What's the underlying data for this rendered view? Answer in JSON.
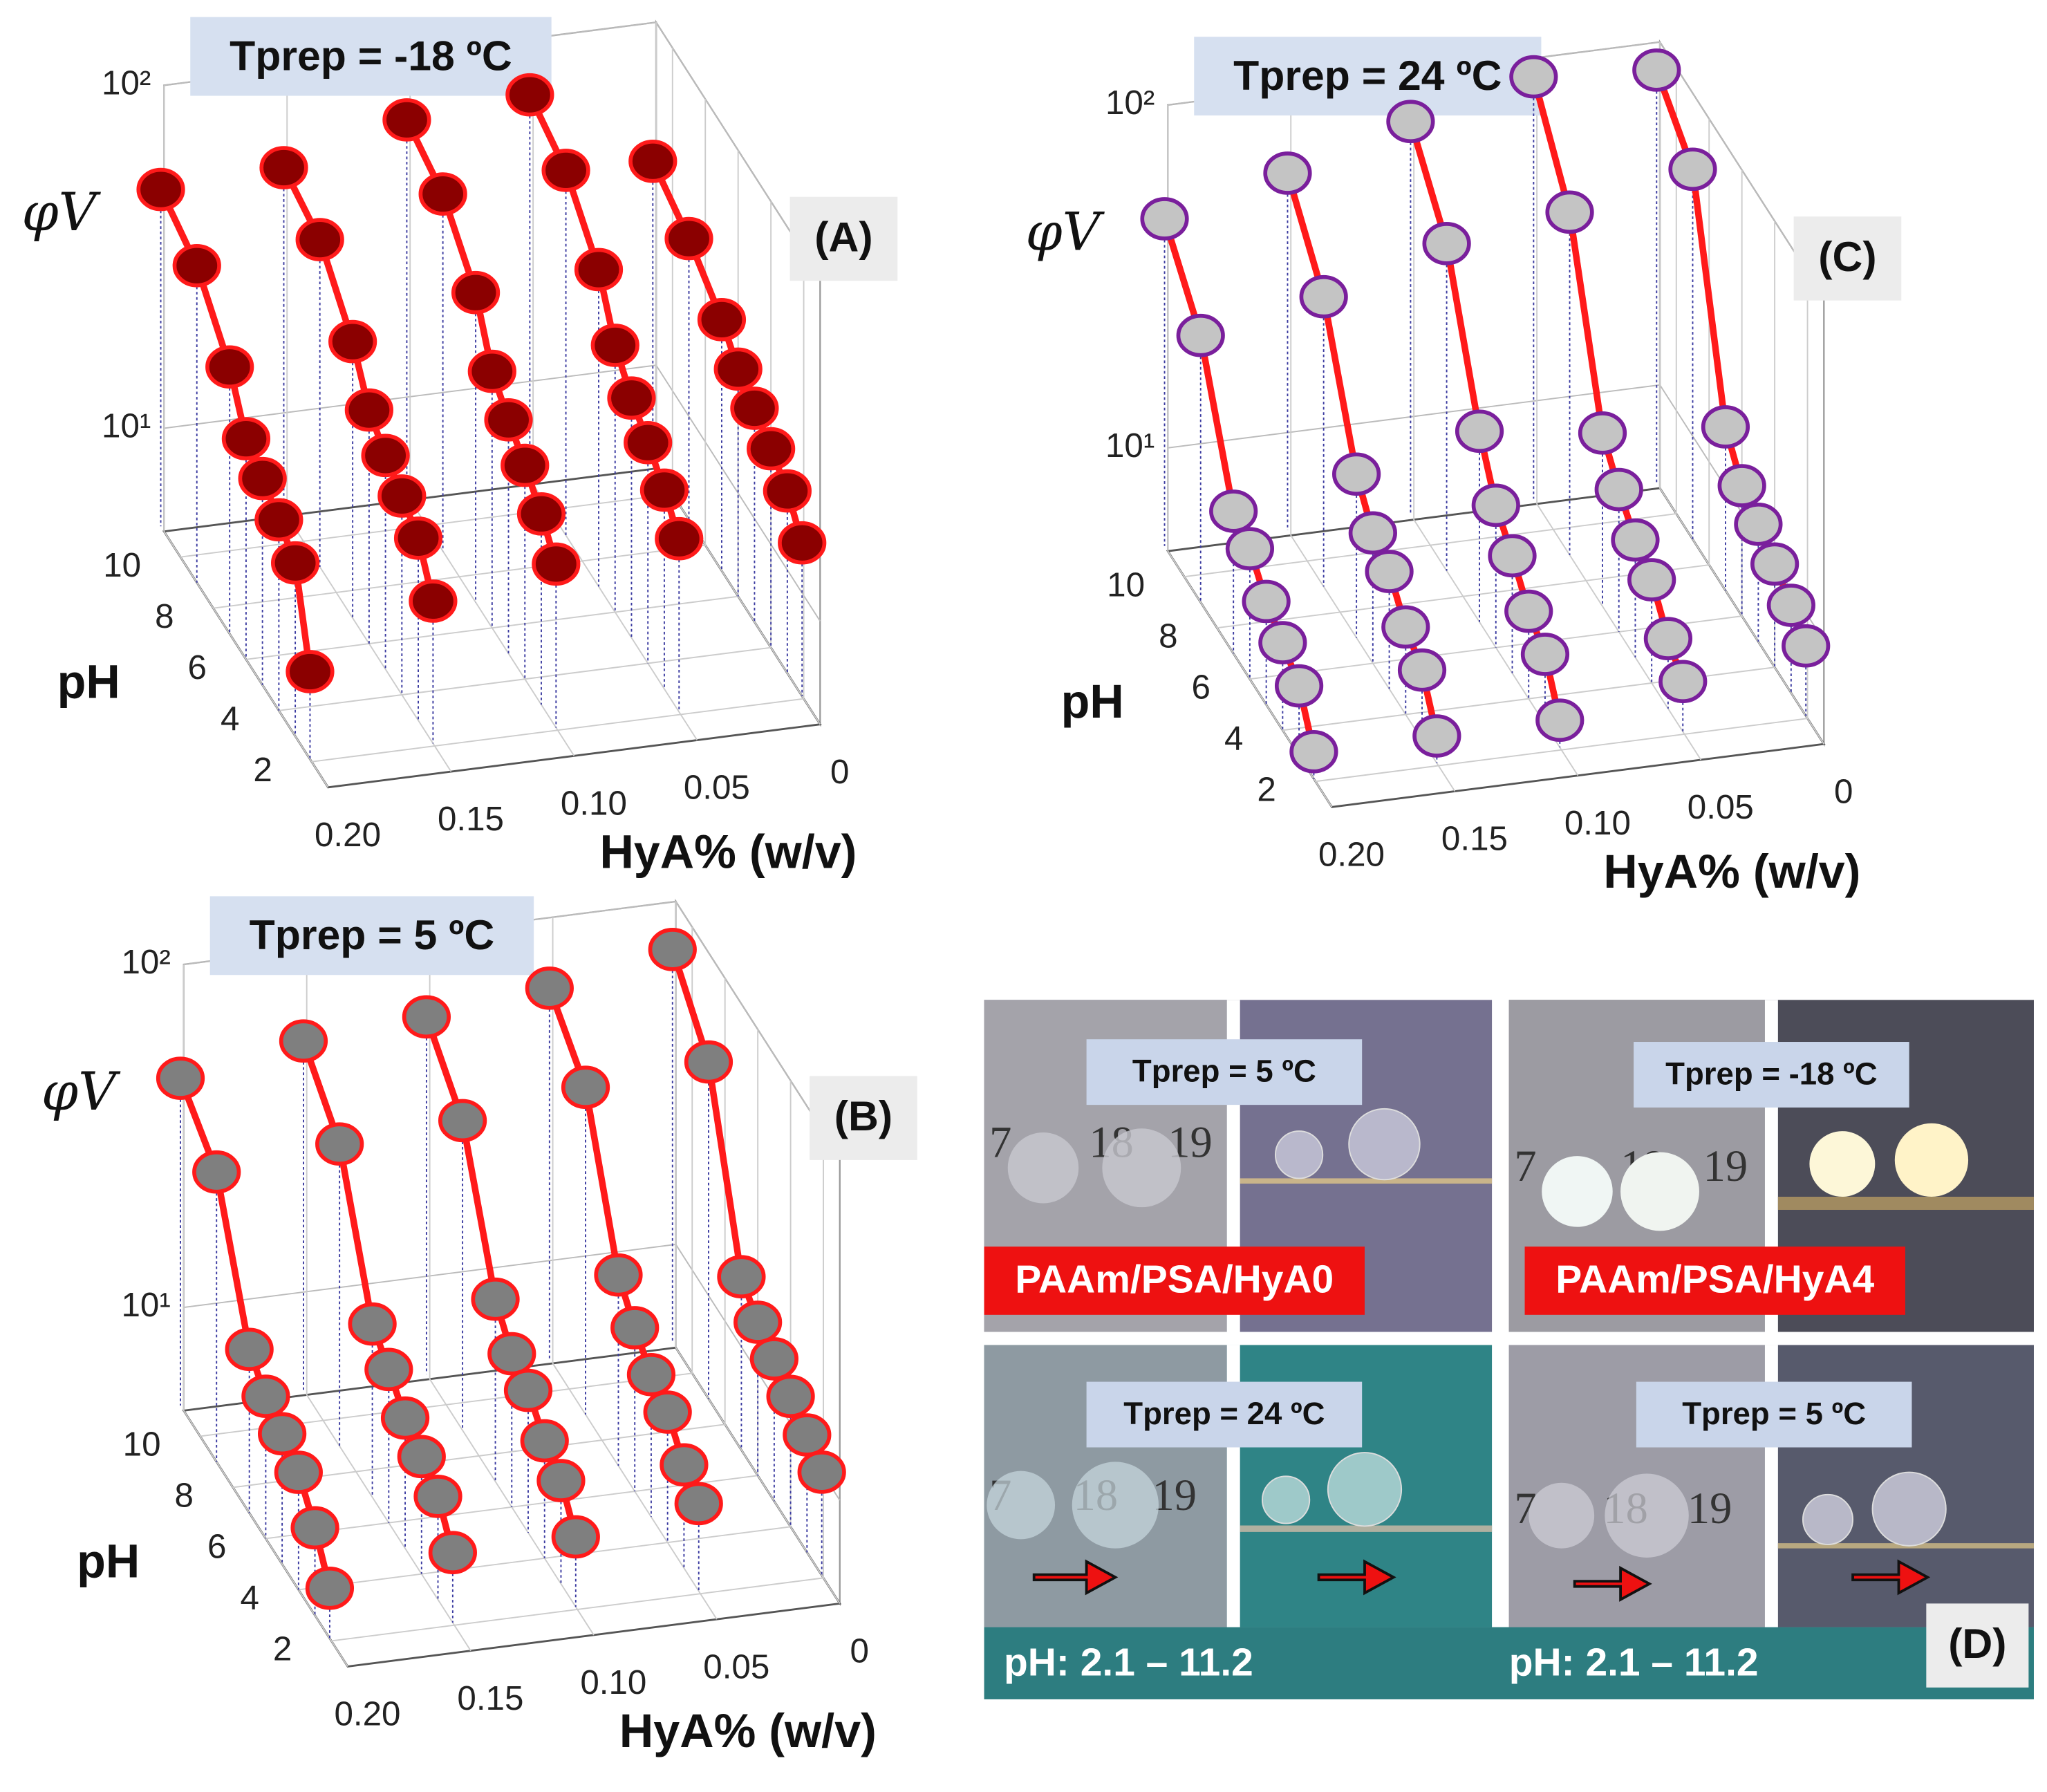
{
  "chart_data": [
    {
      "type": "scatter3d",
      "title": "Tprep = -18 ºC",
      "panel_label": "(A)",
      "xlabel": "HyA% (w/v)",
      "ylabel": "pH",
      "zlabel": "φV",
      "xlim": [
        0.2,
        0
      ],
      "xticks": [
        {
          "value": 0.2,
          "label": "0.20"
        },
        0.15,
        {
          "value": 0.1,
          "label": "0.10"
        },
        0.05,
        0
      ],
      "ylim": [
        1,
        11
      ],
      "yticks": [
        2,
        4,
        6,
        8,
        10
      ],
      "zscale": "log",
      "zlim": [
        5,
        100
      ],
      "zticks": [
        {
          "value": 10,
          "label": "10¹"
        },
        {
          "value": 100,
          "label": "10²"
        }
      ],
      "marker_fill": "#8b0000",
      "marker_edge": "#ff1a1a",
      "line_color": "#ff1a1a",
      "x": [
        2.1,
        3,
        4,
        5,
        6,
        7,
        9,
        11.2
      ],
      "series": [
        {
          "hya": 0.2,
          "values": [
            9,
            16,
            18,
            20,
            22,
            30,
            42,
            48
          ]
        },
        {
          "hya": 0.15,
          "values": [
            13,
            17,
            19,
            21,
            24,
            32,
            45,
            50
          ]
        },
        {
          "hya": 0.1,
          "values": [
            15,
            18,
            21,
            24,
            28,
            40,
            55,
            62
          ]
        },
        {
          "hya": 0.05,
          "values": [
            16,
            19,
            22,
            25,
            30,
            42,
            58,
            66
          ]
        },
        {
          "hya": 0,
          "values": [
            14,
            17,
            19,
            21,
            23,
            27,
            33,
            38
          ]
        }
      ]
    },
    {
      "type": "scatter3d",
      "title": "Tprep = 24 ºC",
      "panel_label": "(C)",
      "xlabel": "HyA% (w/v)",
      "ylabel": "pH",
      "zlabel": "φV",
      "xlim": [
        0.2,
        0
      ],
      "xticks": [
        {
          "value": 0.2,
          "label": "0.20"
        },
        0.15,
        {
          "value": 0.1,
          "label": "0.10"
        },
        0.05,
        0
      ],
      "ylim": [
        1,
        11
      ],
      "yticks": [
        2,
        4,
        6,
        8,
        10
      ],
      "zscale": "log",
      "zlim": [
        5,
        100
      ],
      "zticks": [
        {
          "value": 10,
          "label": "10¹"
        },
        {
          "value": 100,
          "label": "10²"
        }
      ],
      "marker_fill": "#c4c4c4",
      "marker_edge": "#7a1f9c",
      "line_color": "#ff1a1a",
      "x": [
        2.1,
        3,
        4,
        5,
        6,
        7,
        9,
        11.2
      ],
      "series": [
        {
          "hya": 0.2,
          "values": [
            6,
            8,
            9,
            10,
            12,
            13,
            30,
            45
          ]
        },
        {
          "hya": 0.15,
          "values": [
            6,
            8,
            9,
            11,
            12,
            15,
            35,
            55
          ]
        },
        {
          "hya": 0.1,
          "values": [
            6,
            8,
            9,
            11,
            13,
            18,
            45,
            70
          ]
        },
        {
          "hya": 0.05,
          "values": [
            7,
            8,
            10,
            11,
            13,
            16,
            50,
            85
          ]
        },
        {
          "hya": 0,
          "values": [
            8,
            9,
            10,
            11,
            12,
            15,
            60,
            80
          ]
        }
      ]
    },
    {
      "type": "scatter3d",
      "title": "Tprep = 5 ºC",
      "panel_label": "(B)",
      "xlabel": "HyA% (w/v)",
      "ylabel": "pH",
      "zlabel": "φV",
      "xlim": [
        0.2,
        0
      ],
      "xticks": [
        {
          "value": 0.2,
          "label": "0.20"
        },
        0.15,
        {
          "value": 0.1,
          "label": "0.10"
        },
        0.05,
        0
      ],
      "ylim": [
        1,
        11
      ],
      "yticks": [
        2,
        4,
        6,
        8,
        10
      ],
      "zscale": "log",
      "zlim": [
        5,
        100
      ],
      "zticks": [
        {
          "value": 10,
          "label": "10¹"
        },
        {
          "value": 100,
          "label": "10²"
        }
      ],
      "marker_fill": "#7f7f7f",
      "marker_edge": "#ff1a1a",
      "line_color": "#ff1a1a",
      "x": [
        2.1,
        3,
        4,
        5,
        6,
        7,
        9,
        11.2
      ],
      "series": [
        {
          "hya": 0.2,
          "values": [
            7,
            9,
            11,
            12,
            13,
            15,
            35,
            45
          ]
        },
        {
          "hya": 0.15,
          "values": [
            8,
            10,
            11,
            12,
            14,
            16,
            38,
            52
          ]
        },
        {
          "hya": 0.1,
          "values": [
            8,
            10,
            11,
            13,
            14,
            17,
            40,
            55
          ]
        },
        {
          "hya": 0.05,
          "values": [
            9,
            10,
            12,
            13,
            15,
            18,
            45,
            60
          ]
        },
        {
          "hya": 0,
          "values": [
            10,
            11,
            12,
            13,
            14,
            16,
            48,
            70
          ]
        }
      ]
    }
  ],
  "photos": {
    "label": "(D)",
    "ruler": [
      "7",
      "18",
      "19"
    ],
    "panels": [
      {
        "tag": "Tprep = 5 ºC",
        "caption": "PAAm/PSA/HyA0"
      },
      {
        "tag": "Tprep = -18 ºC",
        "caption": "PAAm/PSA/HyA4"
      },
      {
        "tag": "Tprep = 24 ºC",
        "caption": "pH: 2.1 – 11.2"
      },
      {
        "tag": "Tprep = 5 ºC",
        "caption": "pH: 2.1 – 11.2"
      }
    ]
  }
}
